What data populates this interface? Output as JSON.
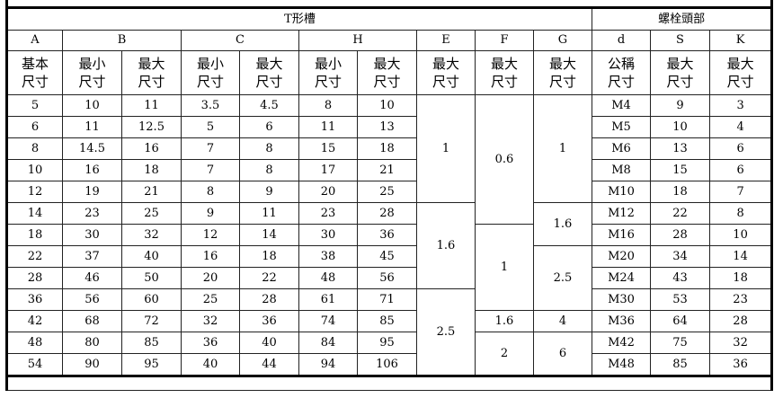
{
  "title_groups": [
    {
      "label": "T形槽",
      "colspan": 10
    },
    {
      "label": "螺栓頭部",
      "colspan": 3
    }
  ],
  "letters": [
    {
      "label": "A",
      "colspan": 1
    },
    {
      "label": "B",
      "colspan": 2
    },
    {
      "label": "C",
      "colspan": 2
    },
    {
      "label": "H",
      "colspan": 2
    },
    {
      "label": "E",
      "colspan": 1
    },
    {
      "label": "F",
      "colspan": 1
    },
    {
      "label": "G",
      "colspan": 1
    },
    {
      "label": "d",
      "colspan": 1
    },
    {
      "label": "S",
      "colspan": 1
    },
    {
      "label": "K",
      "colspan": 1
    }
  ],
  "subheaders": [
    [
      "基本",
      "尺寸"
    ],
    [
      "最小",
      "尺寸"
    ],
    [
      "最大",
      "尺寸"
    ],
    [
      "最小",
      "尺寸"
    ],
    [
      "最大",
      "尺寸"
    ],
    [
      "最小",
      "尺寸"
    ],
    [
      "最大",
      "尺寸"
    ],
    [
      "最大",
      "尺寸"
    ],
    [
      "最大",
      "尺寸"
    ],
    [
      "最大",
      "尺寸"
    ],
    [
      "公稱",
      "尺寸"
    ],
    [
      "最大",
      "尺寸"
    ],
    [
      "最大",
      "尺寸"
    ]
  ],
  "rows": [
    [
      {
        "v": "5"
      },
      {
        "v": "10"
      },
      {
        "v": "11"
      },
      {
        "v": "3.5"
      },
      {
        "v": "4.5"
      },
      {
        "v": "8"
      },
      {
        "v": "10"
      },
      {
        "v": "1",
        "rs": 5
      },
      {
        "v": "0.6",
        "rs": 6
      },
      {
        "v": "1",
        "rs": 5
      },
      {
        "v": "M4"
      },
      {
        "v": "9"
      },
      {
        "v": "3"
      }
    ],
    [
      {
        "v": "6"
      },
      {
        "v": "11"
      },
      {
        "v": "12.5"
      },
      {
        "v": "5"
      },
      {
        "v": "6"
      },
      {
        "v": "11"
      },
      {
        "v": "13"
      },
      {
        "v": "M5"
      },
      {
        "v": "10"
      },
      {
        "v": "4"
      }
    ],
    [
      {
        "v": "8"
      },
      {
        "v": "14.5"
      },
      {
        "v": "16"
      },
      {
        "v": "7"
      },
      {
        "v": "8"
      },
      {
        "v": "15"
      },
      {
        "v": "18"
      },
      {
        "v": "M6"
      },
      {
        "v": "13"
      },
      {
        "v": "6"
      }
    ],
    [
      {
        "v": "10"
      },
      {
        "v": "16"
      },
      {
        "v": "18"
      },
      {
        "v": "7"
      },
      {
        "v": "8"
      },
      {
        "v": "17"
      },
      {
        "v": "21"
      },
      {
        "v": "M8"
      },
      {
        "v": "15"
      },
      {
        "v": "6"
      }
    ],
    [
      {
        "v": "12"
      },
      {
        "v": "19"
      },
      {
        "v": "21"
      },
      {
        "v": "8"
      },
      {
        "v": "9"
      },
      {
        "v": "20"
      },
      {
        "v": "25"
      },
      {
        "v": "M10"
      },
      {
        "v": "18"
      },
      {
        "v": "7"
      }
    ],
    [
      {
        "v": "14"
      },
      {
        "v": "23"
      },
      {
        "v": "25"
      },
      {
        "v": "9"
      },
      {
        "v": "11"
      },
      {
        "v": "23"
      },
      {
        "v": "28"
      },
      {
        "v": "1.6",
        "rs": 4
      },
      {
        "v": "1.6",
        "rs": 2
      },
      {
        "v": "M12"
      },
      {
        "v": "22"
      },
      {
        "v": "8"
      }
    ],
    [
      {
        "v": "18"
      },
      {
        "v": "30"
      },
      {
        "v": "32"
      },
      {
        "v": "12"
      },
      {
        "v": "14"
      },
      {
        "v": "30"
      },
      {
        "v": "36"
      },
      {
        "v": "1",
        "rs": 4
      },
      {
        "v": "M16"
      },
      {
        "v": "28"
      },
      {
        "v": "10"
      }
    ],
    [
      {
        "v": "22"
      },
      {
        "v": "37"
      },
      {
        "v": "40"
      },
      {
        "v": "16"
      },
      {
        "v": "18"
      },
      {
        "v": "38"
      },
      {
        "v": "45"
      },
      {
        "v": "2.5",
        "rs": 3
      },
      {
        "v": "M20"
      },
      {
        "v": "34"
      },
      {
        "v": "14"
      }
    ],
    [
      {
        "v": "28"
      },
      {
        "v": "46"
      },
      {
        "v": "50"
      },
      {
        "v": "20"
      },
      {
        "v": "22"
      },
      {
        "v": "48"
      },
      {
        "v": "56"
      },
      {
        "v": "M24"
      },
      {
        "v": "43"
      },
      {
        "v": "18"
      }
    ],
    [
      {
        "v": "36"
      },
      {
        "v": "56"
      },
      {
        "v": "60"
      },
      {
        "v": "25"
      },
      {
        "v": "28"
      },
      {
        "v": "61"
      },
      {
        "v": "71"
      },
      {
        "v": "2.5",
        "rs": 4
      },
      {
        "v": "M30"
      },
      {
        "v": "53"
      },
      {
        "v": "23"
      }
    ],
    [
      {
        "v": "42"
      },
      {
        "v": "68"
      },
      {
        "v": "72"
      },
      {
        "v": "32"
      },
      {
        "v": "36"
      },
      {
        "v": "74"
      },
      {
        "v": "85"
      },
      {
        "v": "1.6"
      },
      {
        "v": "4"
      },
      {
        "v": "M36"
      },
      {
        "v": "64"
      },
      {
        "v": "28"
      }
    ],
    [
      {
        "v": "48"
      },
      {
        "v": "80"
      },
      {
        "v": "85"
      },
      {
        "v": "36"
      },
      {
        "v": "40"
      },
      {
        "v": "84"
      },
      {
        "v": "95"
      },
      {
        "v": "2",
        "rs": 2
      },
      {
        "v": "6",
        "rs": 2
      },
      {
        "v": "M42"
      },
      {
        "v": "75"
      },
      {
        "v": "32"
      }
    ],
    [
      {
        "v": "54"
      },
      {
        "v": "90"
      },
      {
        "v": "95"
      },
      {
        "v": "40"
      },
      {
        "v": "44"
      },
      {
        "v": "94"
      },
      {
        "v": "106"
      },
      {
        "v": "M48"
      },
      {
        "v": "85"
      },
      {
        "v": "36"
      }
    ]
  ]
}
